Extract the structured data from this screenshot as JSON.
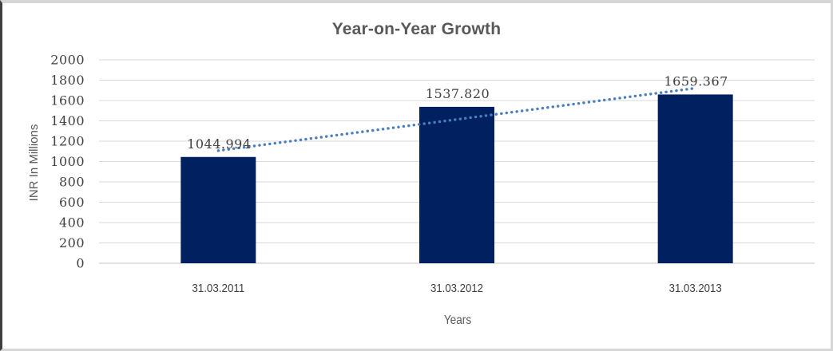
{
  "chart_data": {
    "type": "bar",
    "title": "Year-on-Year Growth",
    "categories": [
      "31.03.2011",
      "31.03.2012",
      "31.03.2013"
    ],
    "values": [
      1044.994,
      1537.82,
      1659.367
    ],
    "data_labels": [
      "1044.994",
      "1537.820",
      "1659.367"
    ],
    "xlabel": "Years",
    "ylabel": "INR In Millions",
    "ylim": [
      0,
      2000
    ],
    "ytick_interval": 200,
    "ytick_labels": [
      "2000",
      "1800",
      "1600",
      "1400",
      "1200",
      "1000",
      "800",
      "600",
      "400",
      "200",
      "0"
    ],
    "grid": "horizontal",
    "legend": "none",
    "trendline": {
      "type": "linear",
      "style": "dotted",
      "series": "values"
    },
    "colors": {
      "bar": "#002060",
      "trendline": "#4A7EBE",
      "gridline": "#D9D9D9",
      "axis_line": "#C6C6C6",
      "title_text": "#595959",
      "axis_title_text": "#595959",
      "tick_label_text": "#404040",
      "data_label_text": "#404040",
      "frame_border": "#D6D6D6",
      "frame_border_left": "#3F3F3F",
      "background": "#FFFFFF"
    }
  }
}
